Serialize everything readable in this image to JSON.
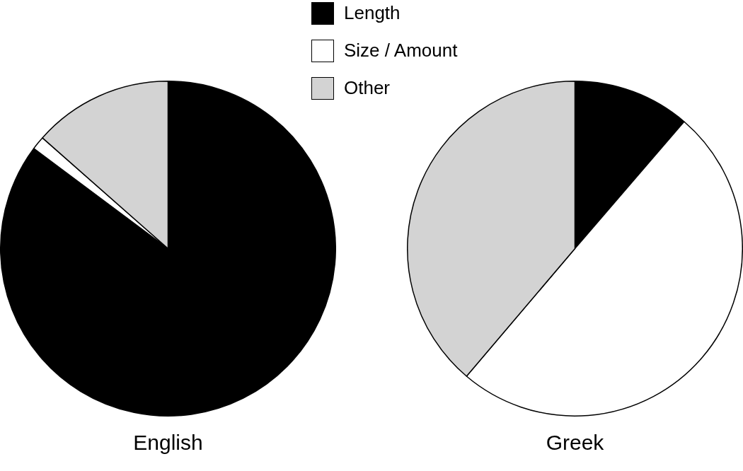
{
  "chart_data": {
    "type": "pie",
    "categories": [
      "Length",
      "Size / Amount",
      "Other"
    ],
    "colors": [
      "#000000",
      "#ffffff",
      "#d3d3d3"
    ],
    "legend": "top",
    "series": [
      {
        "name": "English",
        "values": [
          85.2,
          1.3,
          13.5
        ]
      },
      {
        "name": "Greek",
        "values": [
          11.3,
          49.9,
          38.8
        ]
      }
    ]
  }
}
